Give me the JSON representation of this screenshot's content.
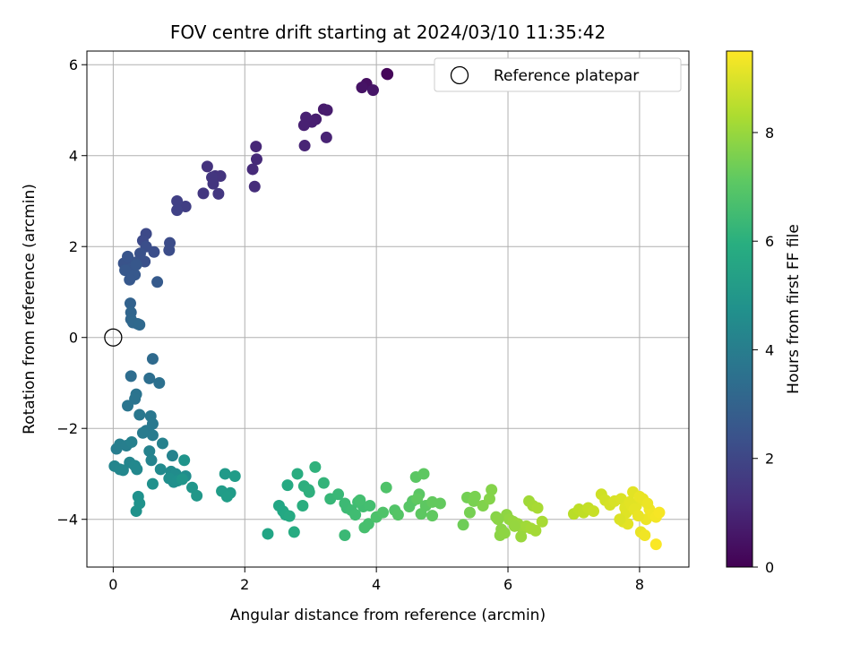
{
  "chart_data": {
    "type": "scatter",
    "title": "FOV centre drift starting at 2024/03/10 11:35:42",
    "xlabel": "Angular distance from reference (arcmin)",
    "ylabel": "Rotation from reference (arcmin)",
    "xlim": [
      -0.4,
      8.75
    ],
    "ylim": [
      -5.05,
      6.3
    ],
    "xticks": [
      0,
      2,
      4,
      6,
      8
    ],
    "yticks": [
      -4,
      -2,
      0,
      2,
      4,
      6
    ],
    "xtick_labels": [
      "0",
      "2",
      "4",
      "6",
      "8"
    ],
    "ytick_labels": [
      "−4",
      "−2",
      "0",
      "2",
      "4",
      "6"
    ],
    "grid": true,
    "legend": {
      "placement": "top-right",
      "entries": [
        {
          "label": "Reference platepar",
          "marker": "open-circle"
        }
      ]
    },
    "reference_point": {
      "x": 0,
      "y": 0
    },
    "colorbar": {
      "label": "Hours from first FF file",
      "colormap": "viridis",
      "range": [
        0,
        9.5
      ],
      "ticks": [
        0,
        2,
        4,
        6,
        8
      ],
      "tick_labels": [
        "0",
        "2",
        "4",
        "6",
        "8"
      ]
    },
    "series": [
      {
        "x": [
          4.16,
          4.17,
          3.85,
          3.78,
          3.95,
          3.2,
          3.25,
          3.08,
          3.02,
          2.93,
          2.9,
          3.24,
          2.91,
          2.17,
          2.18,
          2.12,
          2.15,
          1.43,
          1.55,
          1.63,
          1.5,
          1.37,
          1.6,
          1.52,
          1.1,
          0.97,
          0.97,
          0.5,
          0.45,
          0.86,
          0.85,
          0.62,
          0.5,
          0.48,
          0.41,
          0.33,
          0.16,
          0.22,
          0.31,
          0.25,
          0.18,
          0.33,
          0.25,
          0.35,
          0.67,
          0.26,
          0.27,
          0.27,
          0.3,
          0.37,
          0.4
        ],
        "y": [
          5.8,
          5.79,
          5.58,
          5.5,
          5.44,
          5.02,
          5.0,
          4.8,
          4.74,
          4.84,
          4.67,
          4.4,
          4.22,
          4.2,
          3.92,
          3.7,
          3.32,
          3.76,
          3.55,
          3.55,
          3.52,
          3.17,
          3.16,
          3.38,
          2.88,
          3.0,
          2.8,
          2.28,
          2.13,
          2.08,
          1.92,
          1.88,
          2.0,
          1.67,
          1.85,
          1.65,
          1.63,
          1.78,
          1.55,
          1.5,
          1.48,
          1.38,
          1.27,
          1.6,
          1.22,
          0.75,
          0.55,
          0.4,
          0.33,
          0.3,
          0.28
        ],
        "t": [
          0.15,
          0.15,
          0.4,
          0.5,
          0.55,
          0.7,
          0.75,
          0.8,
          0.85,
          0.9,
          0.9,
          0.95,
          1.0,
          1.1,
          1.15,
          1.2,
          1.25,
          1.4,
          1.45,
          1.45,
          1.5,
          1.55,
          1.55,
          1.5,
          1.75,
          1.8,
          1.85,
          2.1,
          2.15,
          2.2,
          2.25,
          2.3,
          2.3,
          2.35,
          2.4,
          2.45,
          2.45,
          2.5,
          2.55,
          2.55,
          2.6,
          2.65,
          2.65,
          2.6,
          2.7,
          3.0,
          3.1,
          3.15,
          3.2,
          3.2,
          3.25
        ]
      },
      {
        "x": [
          0.6,
          0.27,
          0.55,
          0.7,
          0.35,
          0.33,
          0.22,
          0.4,
          0.57,
          0.6,
          0.5,
          0.45,
          0.6,
          0.05,
          0.1,
          0.2,
          0.28,
          0.75,
          0.9,
          0.55,
          0.58,
          0.25,
          0.02,
          0.1,
          0.15,
          0.33,
          0.36,
          0.72,
          0.88,
          0.95,
          1.1,
          0.92,
          0.85,
          0.98,
          0.6,
          0.38,
          0.4,
          0.35,
          1.08,
          1.05,
          1.2,
          1.27,
          1.7,
          1.78,
          1.85,
          1.65,
          1.73
        ],
        "y": [
          -0.47,
          -0.85,
          -0.9,
          -1.0,
          -1.25,
          -1.35,
          -1.5,
          -1.7,
          -1.73,
          -1.9,
          -2.05,
          -2.1,
          -2.15,
          -2.45,
          -2.35,
          -2.38,
          -2.3,
          -2.33,
          -2.6,
          -2.5,
          -2.7,
          -2.75,
          -2.83,
          -2.9,
          -2.92,
          -2.82,
          -2.9,
          -2.9,
          -2.95,
          -3.0,
          -3.05,
          -3.18,
          -3.1,
          -3.15,
          -3.22,
          -3.5,
          -3.65,
          -3.82,
          -2.7,
          -3.12,
          -3.3,
          -3.48,
          -3.0,
          -3.42,
          -3.05,
          -3.38,
          -3.5
        ],
        "t": [
          3.3,
          3.4,
          3.45,
          3.5,
          3.6,
          3.65,
          3.7,
          3.75,
          3.75,
          3.8,
          3.85,
          3.9,
          3.9,
          4.0,
          4.05,
          4.05,
          4.1,
          4.15,
          4.2,
          4.2,
          4.25,
          4.3,
          4.3,
          4.35,
          4.4,
          4.45,
          4.45,
          4.5,
          4.55,
          4.6,
          4.65,
          4.7,
          4.7,
          4.75,
          4.75,
          4.8,
          4.85,
          4.85,
          4.9,
          4.95,
          5.0,
          5.05,
          5.15,
          5.2,
          5.25,
          5.25,
          5.3
        ]
      },
      {
        "x": [
          2.35,
          2.52,
          2.58,
          2.62,
          2.68,
          2.65,
          2.75,
          2.8,
          2.88,
          2.9,
          2.97,
          2.98,
          3.07,
          3.2,
          3.3,
          3.42,
          3.55,
          3.52,
          3.62,
          3.72,
          3.68,
          3.8,
          3.9,
          3.75,
          3.88,
          4.0,
          4.1,
          4.15,
          4.28,
          4.33,
          4.5,
          4.55,
          4.65,
          4.75,
          4.68,
          4.6,
          4.72,
          4.85,
          4.97,
          4.62,
          4.85,
          3.52,
          3.82
        ],
        "y": [
          -4.32,
          -3.7,
          -3.82,
          -3.9,
          -3.93,
          -3.25,
          -4.28,
          -3.0,
          -3.7,
          -3.27,
          -3.35,
          -3.4,
          -2.85,
          -3.2,
          -3.55,
          -3.45,
          -3.75,
          -3.65,
          -3.8,
          -3.62,
          -3.9,
          -3.72,
          -3.7,
          -3.58,
          -4.1,
          -3.95,
          -3.85,
          -3.3,
          -3.8,
          -3.9,
          -3.72,
          -3.6,
          -3.45,
          -3.7,
          -3.88,
          -3.07,
          -3.0,
          -3.92,
          -3.65,
          -3.55,
          -3.62,
          -4.35,
          -4.18
        ],
        "t": [
          5.6,
          5.65,
          5.7,
          5.75,
          5.8,
          5.8,
          5.85,
          5.9,
          5.95,
          6.0,
          6.05,
          6.05,
          6.1,
          6.2,
          6.3,
          6.35,
          6.45,
          6.45,
          6.5,
          6.55,
          6.55,
          6.6,
          6.65,
          6.65,
          6.7,
          6.8,
          6.85,
          6.85,
          6.9,
          6.95,
          7.0,
          7.0,
          7.05,
          7.1,
          7.1,
          7.05,
          7.1,
          7.15,
          7.2,
          7.15,
          7.2,
          6.4,
          6.7
        ]
      },
      {
        "x": [
          5.32,
          5.38,
          5.42,
          5.48,
          5.5,
          5.62,
          5.72,
          5.75,
          5.82,
          5.88,
          5.9,
          5.98,
          6.02,
          6.08,
          6.15,
          6.22,
          6.28,
          6.32,
          6.38,
          6.42,
          6.52,
          6.35,
          6.45,
          5.85,
          5.95,
          6.1,
          6.2
        ],
        "y": [
          -4.12,
          -3.52,
          -3.85,
          -3.6,
          -3.5,
          -3.7,
          -3.55,
          -3.35,
          -3.95,
          -4.35,
          -4.22,
          -3.9,
          -4.0,
          -4.05,
          -4.1,
          -4.2,
          -4.15,
          -3.6,
          -3.7,
          -4.25,
          -4.05,
          -4.2,
          -3.75,
          -4.0,
          -4.3,
          -4.15,
          -4.38
        ],
        "t": [
          7.4,
          7.5,
          7.55,
          7.6,
          7.6,
          7.7,
          7.75,
          7.75,
          7.8,
          7.85,
          7.85,
          7.9,
          7.95,
          8.0,
          8.05,
          8.1,
          8.15,
          8.15,
          8.2,
          8.2,
          8.25,
          8.2,
          8.25,
          7.85,
          7.9,
          8.0,
          8.05
        ]
      },
      {
        "x": [
          7.0,
          7.08,
          7.15,
          7.22,
          7.3,
          7.42,
          7.48,
          7.55,
          7.62,
          7.72,
          7.78,
          7.8,
          7.85,
          7.9,
          7.95,
          8.0,
          8.05,
          8.1,
          8.15,
          8.2,
          8.25,
          8.3,
          7.75,
          7.82,
          7.88,
          7.7,
          8.02,
          8.08,
          8.12,
          8.25,
          7.92,
          7.98
        ],
        "y": [
          -3.88,
          -3.78,
          -3.85,
          -3.75,
          -3.82,
          -3.45,
          -3.58,
          -3.68,
          -3.6,
          -3.55,
          -3.75,
          -3.85,
          -3.62,
          -3.4,
          -3.7,
          -3.5,
          -3.55,
          -4.0,
          -3.78,
          -3.88,
          -3.95,
          -3.85,
          -4.05,
          -4.1,
          -3.7,
          -4.0,
          -4.28,
          -4.35,
          -3.65,
          -4.55,
          -3.78,
          -3.92
        ],
        "t": [
          8.5,
          8.55,
          8.6,
          8.65,
          8.7,
          8.8,
          8.85,
          8.9,
          8.95,
          9.0,
          9.05,
          9.05,
          9.1,
          9.1,
          9.15,
          9.2,
          9.2,
          9.25,
          9.3,
          9.3,
          9.35,
          9.4,
          9.05,
          9.1,
          9.1,
          9.0,
          9.2,
          9.3,
          9.25,
          9.45,
          9.15,
          9.2
        ]
      }
    ]
  }
}
